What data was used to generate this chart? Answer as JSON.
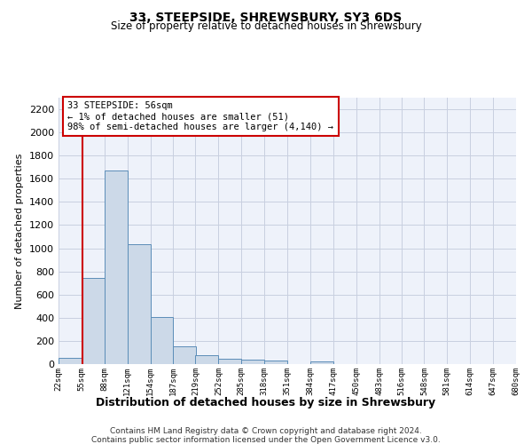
{
  "title": "33, STEEPSIDE, SHREWSBURY, SY3 6DS",
  "subtitle": "Size of property relative to detached houses in Shrewsbury",
  "xlabel": "Distribution of detached houses by size in Shrewsbury",
  "ylabel": "Number of detached properties",
  "footer1": "Contains HM Land Registry data © Crown copyright and database right 2024.",
  "footer2": "Contains public sector information licensed under the Open Government Licence v3.0.",
  "annotation_line1": "33 STEEPSIDE: 56sqm",
  "annotation_line2": "← 1% of detached houses are smaller (51)",
  "annotation_line3": "98% of semi-detached houses are larger (4,140) →",
  "property_size_sqm": 56,
  "bar_color": "#ccd9e8",
  "bar_edge_color": "#5b8db8",
  "vline_color": "#cc0000",
  "annotation_box_color": "#cc0000",
  "grid_color": "#c8cfe0",
  "background_color": "#eef2fa",
  "ylim": [
    0,
    2300
  ],
  "yticks": [
    0,
    200,
    400,
    600,
    800,
    1000,
    1200,
    1400,
    1600,
    1800,
    2000,
    2200
  ],
  "bin_edges": [
    22,
    55,
    88,
    121,
    154,
    187,
    219,
    252,
    285,
    318,
    351,
    384,
    417,
    450,
    483,
    516,
    548,
    581,
    614,
    647,
    680
  ],
  "bin_labels": [
    "22sqm",
    "55sqm",
    "88sqm",
    "121sqm",
    "154sqm",
    "187sqm",
    "219sqm",
    "252sqm",
    "285sqm",
    "318sqm",
    "351sqm",
    "384sqm",
    "417sqm",
    "450sqm",
    "483sqm",
    "516sqm",
    "548sqm",
    "581sqm",
    "614sqm",
    "647sqm",
    "680sqm"
  ],
  "bar_heights": [
    51,
    745,
    1670,
    1035,
    405,
    150,
    80,
    48,
    40,
    30,
    0,
    20,
    0,
    0,
    0,
    0,
    0,
    0,
    0,
    0
  ]
}
